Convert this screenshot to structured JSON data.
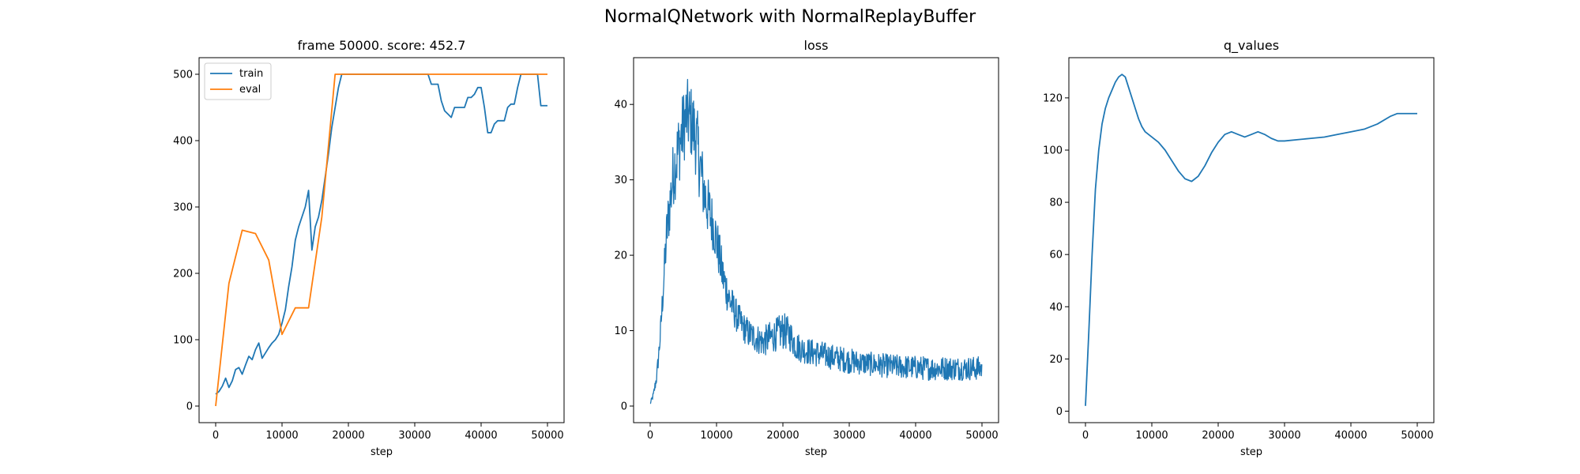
{
  "figure": {
    "suptitle": "NormalQNetwork with NormalReplayBuffer"
  },
  "colors": {
    "train": "#1f77b4",
    "eval": "#ff7f0e",
    "axes": "#000000"
  },
  "chart_data": [
    {
      "type": "line",
      "title": "frame 50000. score: 452.7",
      "xlabel": "step",
      "ylabel": "",
      "xlim": [
        -2500,
        52500
      ],
      "ylim": [
        -25,
        525
      ],
      "xticks": [
        0,
        10000,
        20000,
        30000,
        40000,
        50000
      ],
      "yticks": [
        0,
        100,
        200,
        300,
        400,
        500
      ],
      "legend": {
        "placement": "upper-left",
        "entries": [
          "train",
          "eval"
        ]
      },
      "series": [
        {
          "name": "train",
          "color": "#1f77b4",
          "x": [
            0,
            500,
            1000,
            1500,
            2000,
            2500,
            3000,
            3500,
            4000,
            4500,
            5000,
            5500,
            6000,
            6500,
            7000,
            7500,
            8000,
            8500,
            9000,
            9500,
            10000,
            10500,
            11000,
            11500,
            12000,
            12500,
            13000,
            13500,
            14000,
            14500,
            15000,
            15500,
            16000,
            16500,
            17000,
            17500,
            18000,
            18500,
            19000,
            19500,
            20000,
            21000,
            22000,
            24000,
            26000,
            28000,
            30000,
            32000,
            32500,
            33000,
            33500,
            34000,
            34500,
            35000,
            35500,
            36000,
            36500,
            37000,
            37500,
            38000,
            38500,
            39000,
            39500,
            40000,
            40500,
            41000,
            41500,
            42000,
            42500,
            43000,
            43500,
            44000,
            44500,
            45000,
            45500,
            46000,
            46500,
            47000,
            47500,
            48000,
            48500,
            49000,
            49500,
            50000
          ],
          "y": [
            18,
            22,
            30,
            42,
            28,
            38,
            55,
            58,
            48,
            62,
            75,
            70,
            85,
            95,
            72,
            80,
            88,
            95,
            100,
            108,
            125,
            145,
            180,
            210,
            250,
            270,
            285,
            300,
            325,
            235,
            270,
            285,
            310,
            345,
            380,
            420,
            450,
            480,
            500,
            500,
            500,
            500,
            500,
            500,
            500,
            500,
            500,
            500,
            485,
            485,
            485,
            460,
            445,
            440,
            435,
            450,
            450,
            450,
            450,
            465,
            465,
            470,
            480,
            480,
            450,
            412,
            412,
            425,
            430,
            430,
            430,
            450,
            455,
            455,
            480,
            500,
            500,
            500,
            500,
            500,
            500,
            452.7,
            452.7,
            452.7
          ]
        },
        {
          "name": "eval",
          "color": "#ff7f0e",
          "x": [
            0,
            2000,
            4000,
            6000,
            8000,
            10000,
            12000,
            14000,
            16000,
            18000,
            20000,
            25000,
            30000,
            35000,
            40000,
            45000,
            50000
          ],
          "y": [
            0,
            185,
            265,
            260,
            220,
            108,
            148,
            148,
            285,
            500,
            500,
            500,
            500,
            500,
            500,
            500,
            500
          ]
        }
      ]
    },
    {
      "type": "line",
      "title": "loss",
      "xlabel": "step",
      "ylabel": "",
      "xlim": [
        -2500,
        52500
      ],
      "ylim": [
        -2.2,
        46.2
      ],
      "xticks": [
        0,
        10000,
        20000,
        30000,
        40000,
        50000
      ],
      "yticks": [
        0,
        10,
        20,
        30,
        40
      ],
      "series": [
        {
          "name": "",
          "color": "#1f77b4",
          "x": [
            0,
            500,
            1000,
            1500,
            2000,
            2500,
            3000,
            3500,
            4000,
            4500,
            5000,
            5500,
            6000,
            6500,
            7000,
            7500,
            8000,
            8500,
            9000,
            9500,
            10000,
            11000,
            12000,
            13000,
            14000,
            15000,
            16000,
            17000,
            18000,
            19000,
            20000,
            21000,
            22000,
            23000,
            24000,
            25000,
            26000,
            27000,
            28000,
            29000,
            30000,
            32000,
            34000,
            36000,
            38000,
            40000,
            42000,
            44000,
            46000,
            48000,
            50000
          ],
          "y": [
            0.3,
            1.5,
            4,
            9,
            16,
            23,
            27,
            31,
            33,
            35,
            37,
            38.5,
            38,
            37,
            35,
            32,
            29,
            27,
            25.5,
            24,
            22,
            17,
            14,
            12,
            10.5,
            9.5,
            9,
            8.5,
            9,
            9.5,
            10,
            9.5,
            8,
            7.5,
            7.2,
            7,
            6.8,
            6.6,
            6.4,
            6.2,
            6,
            5.7,
            5.5,
            5.3,
            5.2,
            5.1,
            5,
            5,
            5,
            5,
            5
          ],
          "noise": [
            0.2,
            0.5,
            1,
            1.5,
            2.5,
            3.5,
            4,
            4.5,
            5,
            5,
            5,
            5,
            5,
            5,
            5,
            5,
            4.5,
            4,
            4,
            3.5,
            3.5,
            3,
            2.5,
            2.2,
            2,
            2,
            2,
            2,
            2.2,
            2.2,
            2.5,
            2.2,
            2,
            1.8,
            1.8,
            1.8,
            1.8,
            1.7,
            1.7,
            1.7,
            1.7,
            1.6,
            1.6,
            1.6,
            1.6,
            1.6,
            1.6,
            1.6,
            1.6,
            1.6,
            1.6
          ]
        }
      ]
    },
    {
      "type": "line",
      "title": "q_values",
      "xlabel": "step",
      "ylabel": "",
      "xlim": [
        -2500,
        52500
      ],
      "ylim": [
        -4.4,
        135.4
      ],
      "xticks": [
        0,
        10000,
        20000,
        30000,
        40000,
        50000
      ],
      "yticks": [
        0,
        20,
        40,
        60,
        80,
        100,
        120
      ],
      "series": [
        {
          "name": "",
          "color": "#1f77b4",
          "x": [
            0,
            500,
            1000,
            1500,
            2000,
            2500,
            3000,
            3500,
            4000,
            4500,
            5000,
            5500,
            6000,
            6500,
            7000,
            7500,
            8000,
            8500,
            9000,
            10000,
            11000,
            12000,
            13000,
            14000,
            15000,
            16000,
            17000,
            18000,
            19000,
            20000,
            21000,
            22000,
            23000,
            24000,
            25000,
            26000,
            27000,
            28000,
            29000,
            30000,
            32000,
            34000,
            36000,
            38000,
            40000,
            42000,
            44000,
            46000,
            47000,
            48000,
            49000,
            50000
          ],
          "y": [
            2,
            30,
            60,
            85,
            100,
            110,
            116,
            120,
            123,
            126,
            128,
            129,
            128,
            124,
            120,
            116,
            112,
            109,
            107,
            105,
            103,
            100,
            96,
            92,
            89,
            88,
            90,
            94,
            99,
            103,
            106,
            107,
            106,
            105,
            106,
            107,
            106,
            104.5,
            103.5,
            103.5,
            104,
            104.5,
            105,
            106,
            107,
            108,
            110,
            113,
            114,
            114,
            114,
            114
          ]
        }
      ]
    }
  ]
}
